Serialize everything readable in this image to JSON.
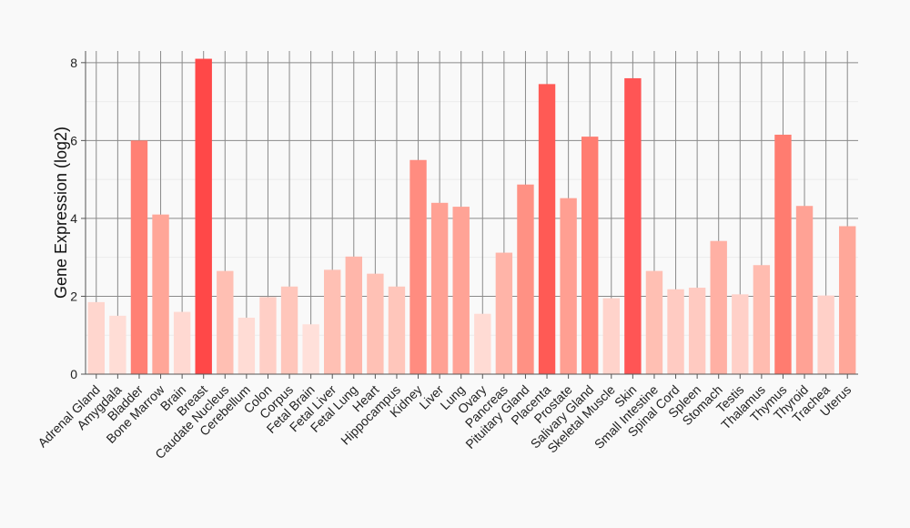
{
  "chart_data": {
    "type": "bar",
    "ylabel": "Gene Expression (log2)",
    "ylim": [
      0,
      8.3
    ],
    "yticks": [
      0,
      2,
      4,
      6,
      8
    ],
    "grid": true,
    "categories": [
      "Adrenal Gland",
      "Amygdala",
      "Bladder",
      "Bone Marrow",
      "Brain",
      "Breast",
      "Caudate Nucleus",
      "Cerebellum",
      "Colon",
      "Corpus",
      "Fetal Brain",
      "Fetal Liver",
      "Fetal Lung",
      "Heart",
      "Hippocampus",
      "Kidney",
      "Liver",
      "Lung",
      "Ovary",
      "Pancreas",
      "Pituitary Gland",
      "Placenta",
      "Prostate",
      "Salivary Gland",
      "Skeletal Muscle",
      "Skin",
      "Small Intestine",
      "Spinal Cord",
      "Spleen",
      "Stomach",
      "Testis",
      "Thalamus",
      "Thymus",
      "Thyroid",
      "Trachea",
      "Uterus"
    ],
    "values": [
      1.85,
      1.5,
      6.0,
      4.1,
      1.6,
      8.1,
      2.65,
      1.45,
      1.98,
      2.25,
      1.28,
      2.68,
      3.02,
      2.58,
      2.25,
      5.5,
      4.4,
      4.3,
      1.55,
      3.12,
      4.87,
      7.45,
      4.52,
      6.1,
      1.95,
      7.6,
      2.65,
      2.18,
      2.22,
      3.42,
      2.05,
      2.8,
      6.15,
      4.32,
      2.02,
      3.8
    ],
    "colors": [
      "#ffd6ce",
      "#ffddd6",
      "#ff8074",
      "#ffa698",
      "#ffd9d2",
      "#ff4848",
      "#ffbfb3",
      "#ffdcd5",
      "#ffcfc6",
      "#ffc6bb",
      "#ffe0da",
      "#ffc0b4",
      "#ffb6aa",
      "#ffc1b5",
      "#ffc6bb",
      "#ff8c80",
      "#ffa194",
      "#ffa396",
      "#ffdbd4",
      "#ffb4a8",
      "#ff9184",
      "#ff5a55",
      "#ff9f92",
      "#ff7d71",
      "#ffd3cb",
      "#ff5555",
      "#ffbfb3",
      "#ffcbc2",
      "#ffcac1",
      "#ffb0a4",
      "#ffd0c8",
      "#ffbcb0",
      "#ff7c70",
      "#ffa295",
      "#ffd0c8",
      "#ffa799"
    ]
  }
}
